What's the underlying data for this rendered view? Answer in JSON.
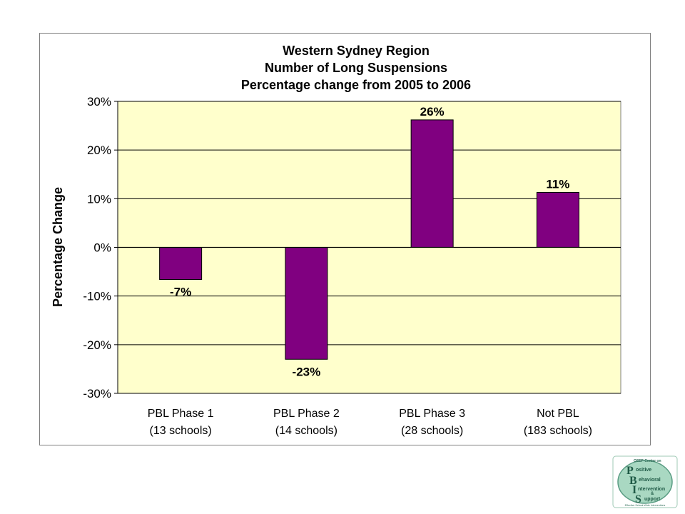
{
  "chart_data": {
    "type": "bar",
    "title": [
      "Western Sydney Region",
      "Number of Long Suspensions",
      "Percentage change from 2005 to 2006"
    ],
    "ylabel": "Percentage Change",
    "ylim": [
      -30,
      30
    ],
    "yticks": [
      30,
      20,
      10,
      0,
      -10,
      -20,
      -30
    ],
    "ytick_labels": [
      "30%",
      "20%",
      "10%",
      "0%",
      "-10%",
      "-20%",
      "-30%"
    ],
    "categories": [
      [
        "PBL Phase 1",
        "(13 schools)"
      ],
      [
        "PBL Phase 2",
        "(14 schools)"
      ],
      [
        "PBL Phase 3",
        "(28 schools)"
      ],
      [
        "Not PBL",
        "(183 schools)"
      ]
    ],
    "values": [
      -6.6,
      -23,
      26.2,
      11.3
    ],
    "value_labels": [
      "-7%",
      "-23%",
      "26%",
      "11%"
    ],
    "grid": true,
    "plot_background": "#ffffcc",
    "bar_color": "#800080"
  },
  "logo": {
    "lines": [
      "OSEP Center on",
      "Positive",
      "Behavioral",
      "Interventions",
      "&",
      "Supports",
      "Effective School-Wide Interventions"
    ]
  }
}
